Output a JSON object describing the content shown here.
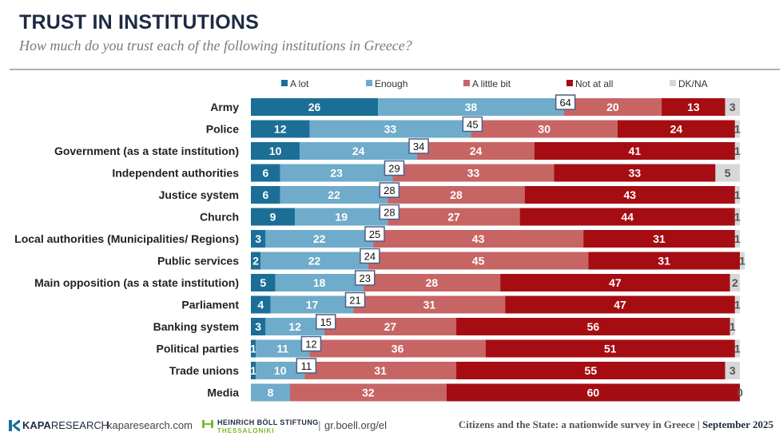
{
  "header": {
    "title": "TRUST IN INSTITUTIONS",
    "subtitle": "How much do you trust each of the following  institutions in Greece?"
  },
  "chart_data": {
    "type": "bar",
    "orientation": "horizontal",
    "stacked": true,
    "legend_position": "top",
    "categories": [
      "Army",
      "Police",
      "Government (as a state institution)",
      "Independent authorities",
      "Justice system",
      "Church",
      "Local authorities (Municipalities/ Regions)",
      "Public services",
      "Main opposition (as a state institution)",
      "Parliament",
      "Banking system",
      "Political parties",
      "Trade unions",
      "Media"
    ],
    "series": [
      {
        "name": "A lot",
        "color": "#1b6f97",
        "values": [
          26,
          12,
          10,
          6,
          6,
          9,
          3,
          2,
          5,
          4,
          3,
          1,
          1,
          0
        ]
      },
      {
        "name": "Enough",
        "color": "#6fabca",
        "values": [
          38,
          33,
          24,
          23,
          22,
          19,
          22,
          22,
          18,
          17,
          12,
          11,
          10,
          8
        ]
      },
      {
        "name": "A little bit",
        "color": "#c76565",
        "values": [
          20,
          30,
          24,
          33,
          28,
          27,
          43,
          45,
          28,
          31,
          27,
          36,
          31,
          32
        ]
      },
      {
        "name": "Not at all",
        "color": "#a50d12",
        "values": [
          13,
          24,
          41,
          33,
          43,
          44,
          31,
          31,
          47,
          47,
          56,
          51,
          55,
          60
        ]
      },
      {
        "name": "DK/NA",
        "color": "#d7d7d7",
        "values": [
          3,
          1,
          1,
          5,
          1,
          1,
          1,
          1,
          2,
          1,
          1,
          1,
          3,
          0
        ]
      }
    ],
    "value_labels": [
      [
        "26",
        "38",
        "20",
        "13",
        "3"
      ],
      [
        "12",
        "33",
        "30",
        "24",
        "1"
      ],
      [
        "10",
        "24",
        "24",
        "41",
        "1"
      ],
      [
        "6",
        "23",
        "33",
        "33",
        "5"
      ],
      [
        "6",
        "22",
        "28",
        "43",
        "1"
      ],
      [
        "9",
        "19",
        "27",
        "44",
        "1"
      ],
      [
        "3",
        "22",
        "43",
        "31",
        "1"
      ],
      [
        "2",
        "22",
        "45",
        "31",
        "1"
      ],
      [
        "5",
        "18",
        "28",
        "47",
        "2"
      ],
      [
        "4",
        "17",
        "31",
        "47",
        "1"
      ],
      [
        "3",
        "12",
        "27",
        "56",
        "1"
      ],
      [
        "1",
        "11",
        "36",
        "51",
        "1"
      ],
      [
        "1",
        "10",
        "31",
        "55",
        "3"
      ],
      [
        "",
        "8",
        "32",
        "60",
        "0"
      ]
    ],
    "trust_totals": [
      64,
      45,
      34,
      29,
      28,
      28,
      25,
      24,
      23,
      21,
      15,
      12,
      11,
      null
    ],
    "xlim": [
      0,
      100
    ]
  },
  "footer": {
    "kapa_logo_bold": "KAPA",
    "kapa_logo_rest": "RESEARCH",
    "separator": "|",
    "kapa_url": "kaparesearch.com",
    "hb_name": "HEINRICH BÖLL STIFTUNG",
    "hb_city": "THESSALONIKI",
    "hb_url": "gr.boell.org/el",
    "citation": "Citizens and the State: a nationwide survey in Greece",
    "date": "September 2025"
  }
}
